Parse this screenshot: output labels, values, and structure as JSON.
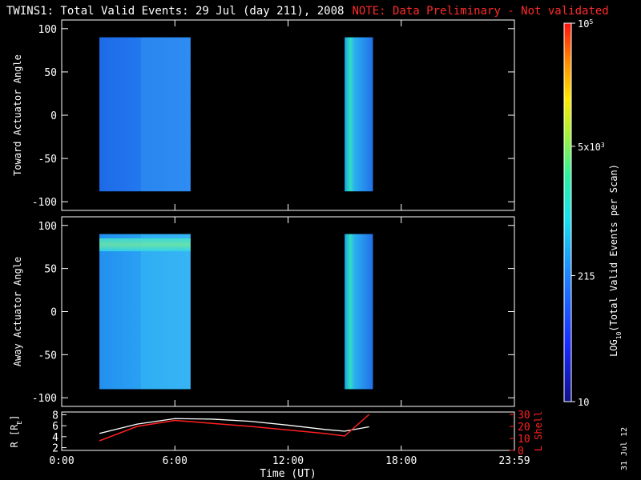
{
  "header": {
    "title": "TWINS1: Total Valid Events: 29 Jul (day 211), 2008",
    "note": "NOTE: Data Preliminary - Not validated"
  },
  "stamp": "31 Jul 12",
  "colors": {
    "background": "#000000",
    "axes": "#ffffff",
    "note": "#ff2a2a",
    "r_line": "#ffffff",
    "l_line": "#ff2020"
  },
  "chart_data": [
    {
      "type": "heatmap",
      "panel": "toward",
      "ylabel": "Toward Actuator Angle",
      "ylim": [
        -110,
        110
      ],
      "yticks": [
        "100",
        "50",
        "0",
        "-50",
        "-100"
      ],
      "xlim_hours": [
        0,
        24
      ],
      "blocks": [
        {
          "x_start": "02:00",
          "x_end": "06:50",
          "y_range": [
            -88,
            90
          ],
          "level": "~180-215"
        },
        {
          "x_start": "15:00",
          "x_end": "16:30",
          "y_range": [
            -88,
            90
          ],
          "level": "~215-500"
        }
      ]
    },
    {
      "type": "heatmap",
      "panel": "away",
      "ylabel": "Away Actuator Angle",
      "ylim": [
        -110,
        110
      ],
      "yticks": [
        "100",
        "50",
        "0",
        "-50",
        "-100"
      ],
      "xlim_hours": [
        0,
        24
      ],
      "blocks": [
        {
          "x_start": "02:00",
          "x_end": "06:50",
          "y_range": [
            -90,
            90
          ],
          "level": "~215-400",
          "enhanced_band": [
            70,
            85
          ]
        },
        {
          "x_start": "15:00",
          "x_end": "16:30",
          "y_range": [
            -90,
            90
          ],
          "level": "~215-500"
        }
      ]
    },
    {
      "type": "line",
      "panel": "orbit",
      "ylabel_left": "R [RE]",
      "ylabel_left_sub": "E",
      "ylabel_right": "L Shell",
      "left_yticks": [
        "8",
        "6",
        "4",
        "2"
      ],
      "right_yticks": [
        "30",
        "20",
        "10",
        "0"
      ],
      "left_ylim": [
        1.5,
        8.5
      ],
      "right_ylim": [
        0,
        32
      ],
      "xlabel": "Time (UT)",
      "xticks": [
        "0:00",
        "6:00",
        "12:00",
        "18:00",
        "23:59"
      ],
      "series": [
        {
          "name": "R",
          "x": [
            2.0,
            4.0,
            6.0,
            8.0,
            10.0,
            12.0,
            14.0,
            15.0,
            16.3
          ],
          "y": [
            4.6,
            6.3,
            7.3,
            7.2,
            6.8,
            6.1,
            5.3,
            5.0,
            5.8
          ]
        },
        {
          "name": "L Shell",
          "x": [
            2.0,
            4.0,
            6.0,
            10.0,
            14.0,
            15.0,
            16.3
          ],
          "y": [
            8,
            20,
            25,
            20,
            14,
            12,
            30
          ]
        }
      ]
    }
  ],
  "colorbar": {
    "label": "LOG10(Total Valid Events per Scan)",
    "label_main": "LOG",
    "label_sub": "10",
    "label_rest": "(Total Valid Events per Scan)",
    "ticks": [
      {
        "text": "10",
        "value": 10
      },
      {
        "text": "215",
        "value": 215
      },
      {
        "text": "5x10",
        "exp": "3",
        "value": 5000
      },
      {
        "text": "10",
        "exp": "5",
        "value": 100000
      }
    ],
    "range": [
      10,
      100000
    ],
    "scale": "log"
  }
}
